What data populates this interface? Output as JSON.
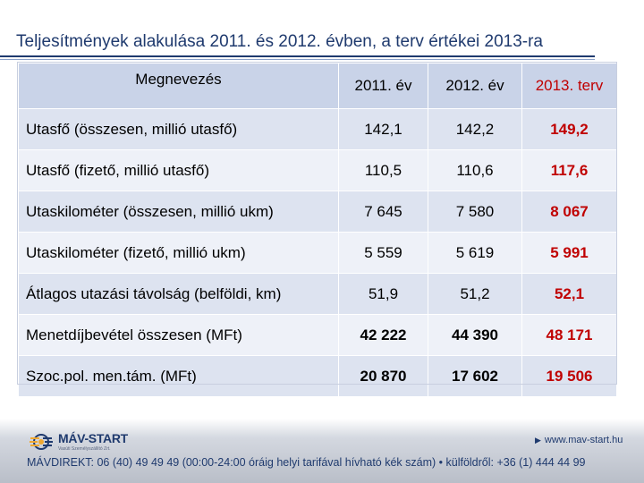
{
  "title": "Teljesítmények alakulása 2011. és 2012. évben, a terv értékei 2013-ra",
  "table": {
    "headers": [
      "Megnevezés",
      "2011. év",
      "2012. év",
      "2013. terv"
    ],
    "rows": [
      {
        "label": "Utasfő (összesen, millió utasfő)",
        "v2011": "142,1",
        "v2012": "142,2",
        "v2013": "149,2"
      },
      {
        "label": "Utasfő (fizető, millió utasfő)",
        "v2011": "110,5",
        "v2012": "110,6",
        "v2013": "117,6"
      },
      {
        "label": "Utaskilométer (összesen, millió ukm)",
        "v2011": "7 645",
        "v2012": "7 580",
        "v2013": "8 067"
      },
      {
        "label": "Utaskilométer (fizető, millió ukm)",
        "v2011": "5 559",
        "v2012": "5 619",
        "v2013": "5 991"
      },
      {
        "label": "Átlagos utazási távolság (belföldi, km)",
        "v2011": "51,9",
        "v2012": "51,2",
        "v2013": "52,1"
      },
      {
        "label": "Menetdíjbevétel összesen (MFt)",
        "v2011": "42 222",
        "v2012": "44 390",
        "v2013": "48 171"
      },
      {
        "label": "Szoc.pol. men.tám. (MFt)",
        "v2011": "20 870",
        "v2012": "17 602",
        "v2013": "19 506"
      }
    ]
  },
  "footer": {
    "logo_text": "MÁV-START",
    "logo_sub": "Vasúti Személyszállító Zrt.",
    "website": "www.mav-start.hu",
    "contact": "MÁVDIREKT: 06 (40) 49 49 49 (00:00-24:00 óráig helyi tarifával hívható kék szám) • külföldről: +36 (1) 444 44 99"
  },
  "colors": {
    "title": "#1f3a6e",
    "header_bg": "#c9d3e8",
    "row_odd": "#dde3f0",
    "row_even": "#eef1f8",
    "plan_red": "#c00000"
  }
}
